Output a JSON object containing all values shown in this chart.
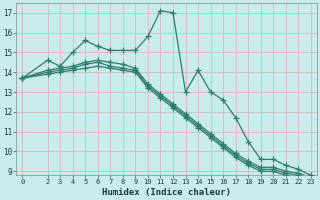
{
  "xlabel": "Humidex (Indice chaleur)",
  "bg_color": "#c8ecec",
  "grid_color": "#d8b8b8",
  "line_color": "#2e7d6a",
  "xlim": [
    -0.5,
    23.5
  ],
  "ylim": [
    8.8,
    17.5
  ],
  "yticks": [
    9,
    10,
    11,
    12,
    13,
    14,
    15,
    16,
    17
  ],
  "xticks": [
    0,
    2,
    3,
    4,
    5,
    6,
    7,
    8,
    9,
    10,
    11,
    12,
    13,
    14,
    15,
    16,
    17,
    18,
    19,
    20,
    21,
    22,
    23
  ],
  "series": {
    "main": {
      "x": [
        0,
        2,
        3,
        4,
        5,
        6,
        7,
        8,
        9,
        10,
        11,
        12,
        13,
        14,
        15,
        16,
        17,
        18,
        19,
        20,
        21,
        22,
        23
      ],
      "y": [
        13.7,
        14.6,
        14.3,
        15.0,
        15.6,
        15.3,
        15.1,
        15.1,
        15.1,
        15.8,
        17.1,
        17.0,
        13.0,
        14.1,
        13.0,
        12.6,
        11.7,
        10.5,
        9.6,
        9.6,
        9.3,
        9.1,
        8.8
      ]
    },
    "trend1": {
      "x": [
        0,
        2,
        3,
        4,
        5,
        6,
        7,
        8,
        9,
        10,
        11,
        12,
        13,
        14,
        15,
        16,
        17,
        18,
        19,
        20,
        21,
        22,
        23
      ],
      "y": [
        13.7,
        14.1,
        14.2,
        14.3,
        14.5,
        14.6,
        14.5,
        14.4,
        14.2,
        13.4,
        12.9,
        12.4,
        11.9,
        11.4,
        10.9,
        10.4,
        9.9,
        9.5,
        9.2,
        9.2,
        9.0,
        8.9,
        8.7
      ]
    },
    "trend2": {
      "x": [
        0,
        2,
        3,
        4,
        5,
        6,
        7,
        8,
        9,
        10,
        11,
        12,
        13,
        14,
        15,
        16,
        17,
        18,
        19,
        20,
        21,
        22,
        23
      ],
      "y": [
        13.7,
        14.0,
        14.1,
        14.2,
        14.4,
        14.5,
        14.3,
        14.2,
        14.1,
        13.3,
        12.8,
        12.3,
        11.8,
        11.3,
        10.8,
        10.3,
        9.8,
        9.4,
        9.1,
        9.1,
        8.9,
        8.8,
        8.65
      ]
    },
    "trend3": {
      "x": [
        0,
        2,
        3,
        4,
        5,
        6,
        7,
        8,
        9,
        10,
        11,
        12,
        13,
        14,
        15,
        16,
        17,
        18,
        19,
        20,
        21,
        22,
        23
      ],
      "y": [
        13.7,
        13.9,
        14.0,
        14.1,
        14.2,
        14.3,
        14.2,
        14.1,
        14.0,
        13.2,
        12.7,
        12.2,
        11.7,
        11.2,
        10.7,
        10.2,
        9.7,
        9.3,
        9.0,
        9.0,
        8.8,
        8.75,
        8.55
      ]
    }
  }
}
